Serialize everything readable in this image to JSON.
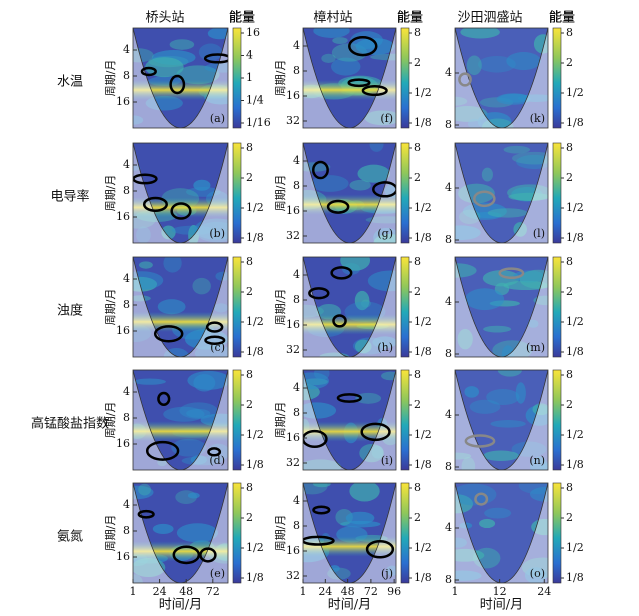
{
  "column_titles": [
    "桥头站",
    "樟村站",
    "沙田泗盛站"
  ],
  "energy_label": "能量",
  "row_labels": [
    "水温",
    "电导率",
    "浊度",
    "高锰酸盐指数",
    "氨氮"
  ],
  "y_axis_label": "周期/月",
  "x_axis_label": "时间/月",
  "columns": [
    {
      "x_ticks": [
        1,
        24,
        48,
        72
      ],
      "y_ticks": [
        [
          4,
          8,
          16
        ],
        [
          4,
          8,
          16
        ],
        [
          4,
          8,
          16
        ],
        [
          4,
          8,
          16
        ],
        [
          4,
          8,
          16
        ]
      ],
      "colorbar_ticks": [
        [
          16,
          4,
          1,
          "1/4",
          "1/16"
        ],
        [
          8,
          2,
          "1/2",
          "1/8"
        ],
        [
          8,
          2,
          "1/2",
          "1/8"
        ],
        [
          8,
          2,
          "1/2",
          "1/8"
        ],
        [
          8,
          2,
          "1/2",
          "1/8"
        ]
      ],
      "panel_labels": [
        "(a)",
        "(b)",
        "(c)",
        "(d)",
        "(e)"
      ]
    },
    {
      "x_ticks": [
        1,
        24,
        48,
        72,
        96
      ],
      "y_ticks": [
        [
          4,
          8,
          16,
          32
        ],
        [
          4,
          8,
          16,
          32
        ],
        [
          4,
          8,
          16,
          32
        ],
        [
          4,
          8,
          16,
          32
        ],
        [
          4,
          8,
          16,
          32
        ]
      ],
      "colorbar_ticks": [
        [
          8,
          2,
          "1/2",
          "1/8"
        ],
        [
          8,
          2,
          "1/2",
          "1/8"
        ],
        [
          8,
          2,
          "1/2",
          "1/8"
        ],
        [
          8,
          2,
          "1/2",
          "1/8"
        ],
        [
          8,
          2,
          "1/2",
          "1/8"
        ]
      ],
      "panel_labels": [
        "(f)",
        "(g)",
        "(h)",
        "(i)",
        "(j)"
      ]
    },
    {
      "x_ticks": [
        1,
        12,
        24
      ],
      "y_ticks": [
        [
          4,
          8
        ],
        [
          4,
          8
        ],
        [
          4,
          8
        ],
        [
          4,
          8
        ],
        [
          4,
          8
        ]
      ],
      "colorbar_ticks": [
        [
          8,
          2,
          "1/2",
          "1/8"
        ],
        [
          8,
          2,
          "1/2",
          "1/8"
        ],
        [
          8,
          2,
          "1/2",
          "1/8"
        ],
        [
          8,
          2,
          "1/2",
          "1/8"
        ],
        [
          8,
          2,
          "1/2",
          "1/8"
        ]
      ],
      "panel_labels": [
        "(k)",
        "(l)",
        "(m)",
        "(n)",
        "(o)"
      ]
    }
  ]
}
